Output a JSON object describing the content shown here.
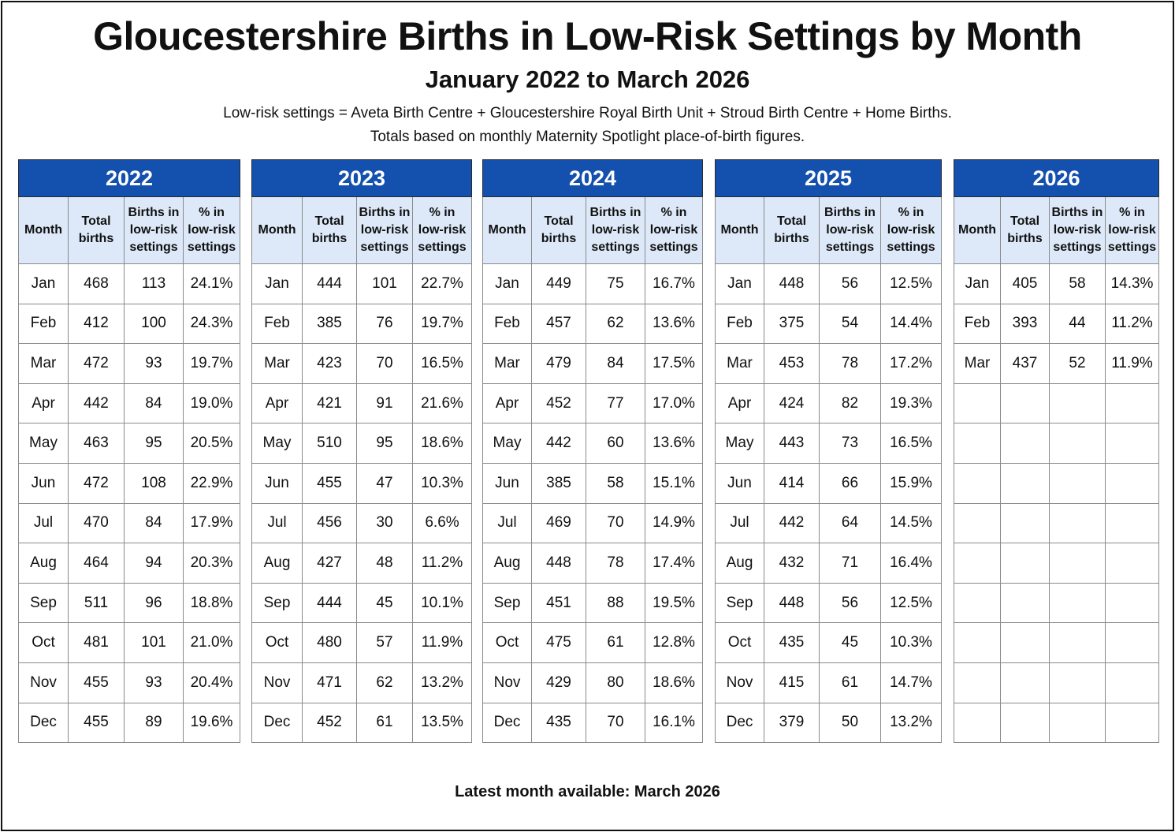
{
  "title": "Gloucestershire Births in Low-Risk Settings by Month",
  "subtitle": "January 2022 to March 2026",
  "notes": [
    "Low-risk settings = Aveta Birth Centre + Gloucestershire Royal Birth Unit + Stroud Birth Centre + Home Births.",
    "Totals based on monthly Maternity Spotlight place-of-birth figures."
  ],
  "footer": "Latest month available: March 2026",
  "colors": {
    "header_blue": "#1450ad",
    "column_header_bg": "#dde9f8"
  },
  "column_headers": {
    "month": "Month",
    "total": [
      "Total",
      "births"
    ],
    "low_risk": [
      "Births in",
      "low-risk",
      "settings"
    ],
    "pct": [
      "% in",
      "low-risk",
      "settings"
    ]
  },
  "years": [
    {
      "year": "2022",
      "rows": [
        [
          "Jan",
          "468",
          "113",
          "24.1%"
        ],
        [
          "Feb",
          "412",
          "100",
          "24.3%"
        ],
        [
          "Mar",
          "472",
          "93",
          "19.7%"
        ],
        [
          "Apr",
          "442",
          "84",
          "19.0%"
        ],
        [
          "May",
          "463",
          "95",
          "20.5%"
        ],
        [
          "Jun",
          "472",
          "108",
          "22.9%"
        ],
        [
          "Jul",
          "470",
          "84",
          "17.9%"
        ],
        [
          "Aug",
          "464",
          "94",
          "20.3%"
        ],
        [
          "Sep",
          "511",
          "96",
          "18.8%"
        ],
        [
          "Oct",
          "481",
          "101",
          "21.0%"
        ],
        [
          "Nov",
          "455",
          "93",
          "20.4%"
        ],
        [
          "Dec",
          "455",
          "89",
          "19.6%"
        ]
      ]
    },
    {
      "year": "2023",
      "rows": [
        [
          "Jan",
          "444",
          "101",
          "22.7%"
        ],
        [
          "Feb",
          "385",
          "76",
          "19.7%"
        ],
        [
          "Mar",
          "423",
          "70",
          "16.5%"
        ],
        [
          "Apr",
          "421",
          "91",
          "21.6%"
        ],
        [
          "May",
          "510",
          "95",
          "18.6%"
        ],
        [
          "Jun",
          "455",
          "47",
          "10.3%"
        ],
        [
          "Jul",
          "456",
          "30",
          "6.6%"
        ],
        [
          "Aug",
          "427",
          "48",
          "11.2%"
        ],
        [
          "Sep",
          "444",
          "45",
          "10.1%"
        ],
        [
          "Oct",
          "480",
          "57",
          "11.9%"
        ],
        [
          "Nov",
          "471",
          "62",
          "13.2%"
        ],
        [
          "Dec",
          "452",
          "61",
          "13.5%"
        ]
      ]
    },
    {
      "year": "2024",
      "rows": [
        [
          "Jan",
          "449",
          "75",
          "16.7%"
        ],
        [
          "Feb",
          "457",
          "62",
          "13.6%"
        ],
        [
          "Mar",
          "479",
          "84",
          "17.5%"
        ],
        [
          "Apr",
          "452",
          "77",
          "17.0%"
        ],
        [
          "May",
          "442",
          "60",
          "13.6%"
        ],
        [
          "Jun",
          "385",
          "58",
          "15.1%"
        ],
        [
          "Jul",
          "469",
          "70",
          "14.9%"
        ],
        [
          "Aug",
          "448",
          "78",
          "17.4%"
        ],
        [
          "Sep",
          "451",
          "88",
          "19.5%"
        ],
        [
          "Oct",
          "475",
          "61",
          "12.8%"
        ],
        [
          "Nov",
          "429",
          "80",
          "18.6%"
        ],
        [
          "Dec",
          "435",
          "70",
          "16.1%"
        ]
      ]
    },
    {
      "year": "2025",
      "rows": [
        [
          "Jan",
          "448",
          "56",
          "12.5%"
        ],
        [
          "Feb",
          "375",
          "54",
          "14.4%"
        ],
        [
          "Mar",
          "453",
          "78",
          "17.2%"
        ],
        [
          "Apr",
          "424",
          "82",
          "19.3%"
        ],
        [
          "May",
          "443",
          "73",
          "16.5%"
        ],
        [
          "Jun",
          "414",
          "66",
          "15.9%"
        ],
        [
          "Jul",
          "442",
          "64",
          "14.5%"
        ],
        [
          "Aug",
          "432",
          "71",
          "16.4%"
        ],
        [
          "Sep",
          "448",
          "56",
          "12.5%"
        ],
        [
          "Oct",
          "435",
          "45",
          "10.3%"
        ],
        [
          "Nov",
          "415",
          "61",
          "14.7%"
        ],
        [
          "Dec",
          "379",
          "50",
          "13.2%"
        ]
      ]
    },
    {
      "year": "2026",
      "rows": [
        [
          "Jan",
          "405",
          "58",
          "14.3%"
        ],
        [
          "Feb",
          "393",
          "44",
          "11.2%"
        ],
        [
          "Mar",
          "437",
          "52",
          "11.9%"
        ],
        [
          "",
          "",
          "",
          ""
        ],
        [
          "",
          "",
          "",
          ""
        ],
        [
          "",
          "",
          "",
          ""
        ],
        [
          "",
          "",
          "",
          ""
        ],
        [
          "",
          "",
          "",
          ""
        ],
        [
          "",
          "",
          "",
          ""
        ],
        [
          "",
          "",
          "",
          ""
        ],
        [
          "",
          "",
          "",
          ""
        ],
        [
          "",
          "",
          "",
          ""
        ]
      ]
    }
  ]
}
